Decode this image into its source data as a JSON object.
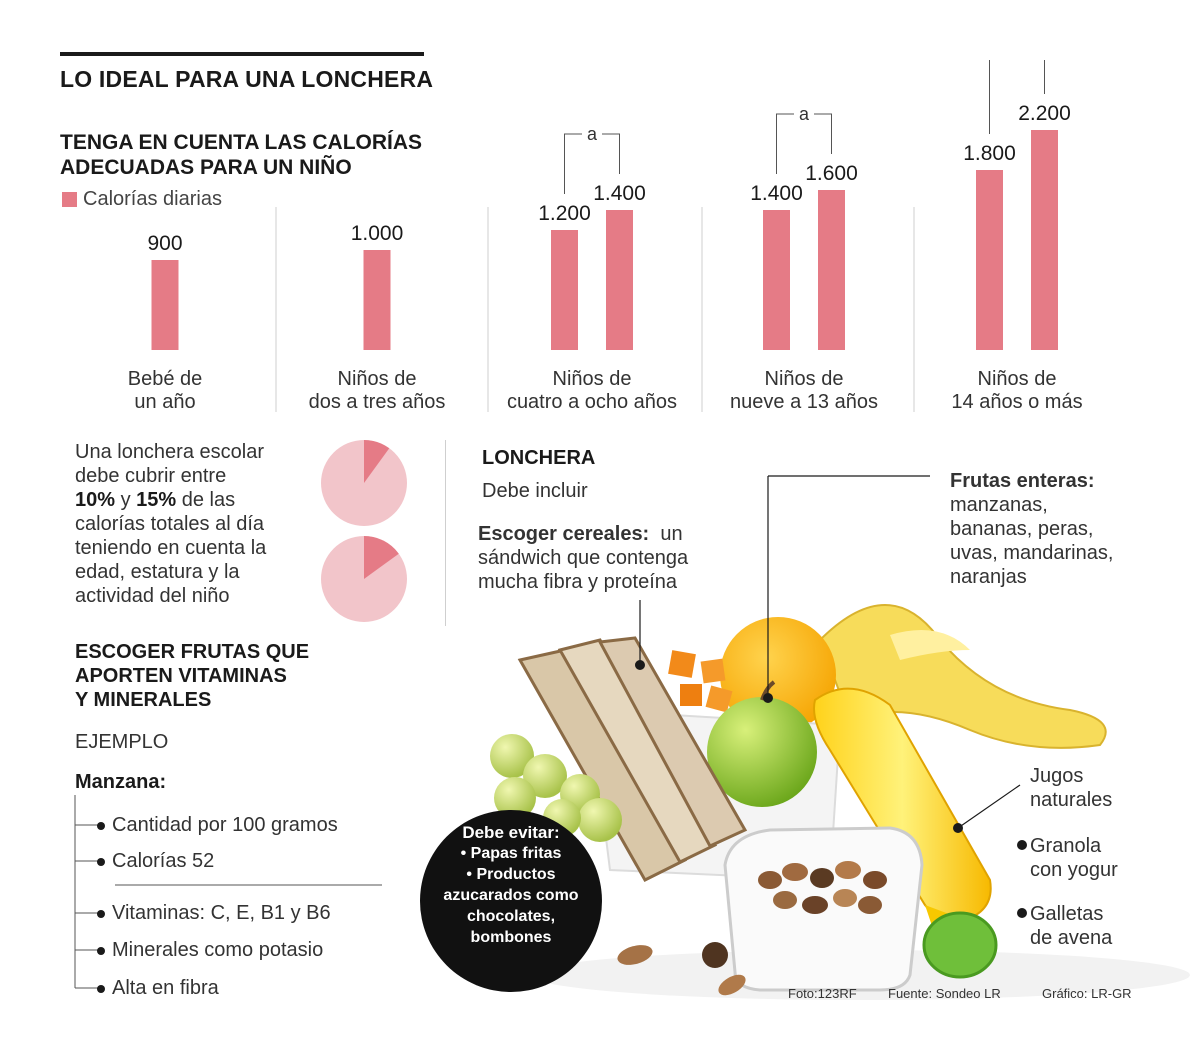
{
  "header": {
    "title": "LO IDEAL PARA UNA LONCHERA",
    "subtitle_line1": "TENGA EN CUENTA LAS CALORÍAS",
    "subtitle_line2": "ADECUADAS PARA UN NIÑO"
  },
  "chart_data": {
    "type": "bar",
    "legend": "Calorías diarias",
    "bar_color": "#e57b86",
    "range_connector_label": "a",
    "ylim": [
      0,
      2200
    ],
    "groups": [
      {
        "label_line1": "Bebé de",
        "label_line2": "un año",
        "values": [
          900
        ],
        "value_labels": [
          "900"
        ]
      },
      {
        "label_line1": "Niños de",
        "label_line2": "dos a tres años",
        "values": [
          1000
        ],
        "value_labels": [
          "1.000"
        ]
      },
      {
        "label_line1": "Niños de",
        "label_line2": "cuatro a ocho años",
        "values": [
          1200,
          1400
        ],
        "value_labels": [
          "1.200",
          "1.400"
        ]
      },
      {
        "label_line1": "Niños de",
        "label_line2": "nueve a 13 años",
        "values": [
          1400,
          1600
        ],
        "value_labels": [
          "1.400",
          "1.600"
        ]
      },
      {
        "label_line1": "Niños de",
        "label_line2": "14 años o más",
        "values": [
          1800,
          2200
        ],
        "value_labels": [
          "1.800",
          "2.200"
        ]
      }
    ]
  },
  "pies": {
    "fractions": [
      0.1,
      0.15
    ],
    "fill_color": "#f2c5ca",
    "slice_color": "#e57b86",
    "text_line1": "Una lonchera escolar",
    "text_line2": "debe cubrir entre",
    "text_pct1": "10%",
    "text_and": "y",
    "text_pct2": "15%",
    "text_line3_rest": "de las",
    "text_line4": "calorías totales al día",
    "text_line5": "teniendo en cuenta la",
    "text_line6": "edad, estatura y la",
    "text_line7": "actividad del niño"
  },
  "fruits_section": {
    "title_line1": "ESCOGER FRUTAS QUE",
    "title_line2": "APORTEN VITAMINAS",
    "title_line3": "Y MINERALES",
    "example_label": "EJEMPLO",
    "fruit_name": "Manzana:",
    "items": [
      "Cantidad por 100 gramos",
      "Calorías 52",
      "Vitaminas: C, E, B1 y B6",
      "Minerales como potasio",
      "Alta en fibra"
    ]
  },
  "lonchera": {
    "title": "LONCHERA",
    "subtitle": "Debe incluir",
    "cereals_bold": "Escoger cereales:",
    "cereals_line1_rest": "un",
    "cereals_line2": "sándwich que contenga",
    "cereals_line3": "mucha fibra y proteína",
    "fruits_bold": "Frutas enteras:",
    "fruits_line1": "manzanas,",
    "fruits_line2": "bananas, peras,",
    "fruits_line3": "uvas, mandarinas,",
    "fruits_line4": "naranjas",
    "juice_line1": "Jugos",
    "juice_line2": "naturales",
    "granola_line1": "Granola",
    "granola_line2": "con  yogur",
    "cookies_line1": "Galletas",
    "cookies_line2": "de avena"
  },
  "avoid": {
    "title": "Debe evitar:",
    "item1": "• Papas fritas",
    "item2_line1": "• Productos",
    "item2_line2": "azucarados como",
    "item2_line3": "chocolates,",
    "item2_line4": "bombones"
  },
  "footer": {
    "photo": "Foto:123RF",
    "source": "Fuente: Sondeo LR",
    "graphic": "Gráfico: LR-GR"
  }
}
